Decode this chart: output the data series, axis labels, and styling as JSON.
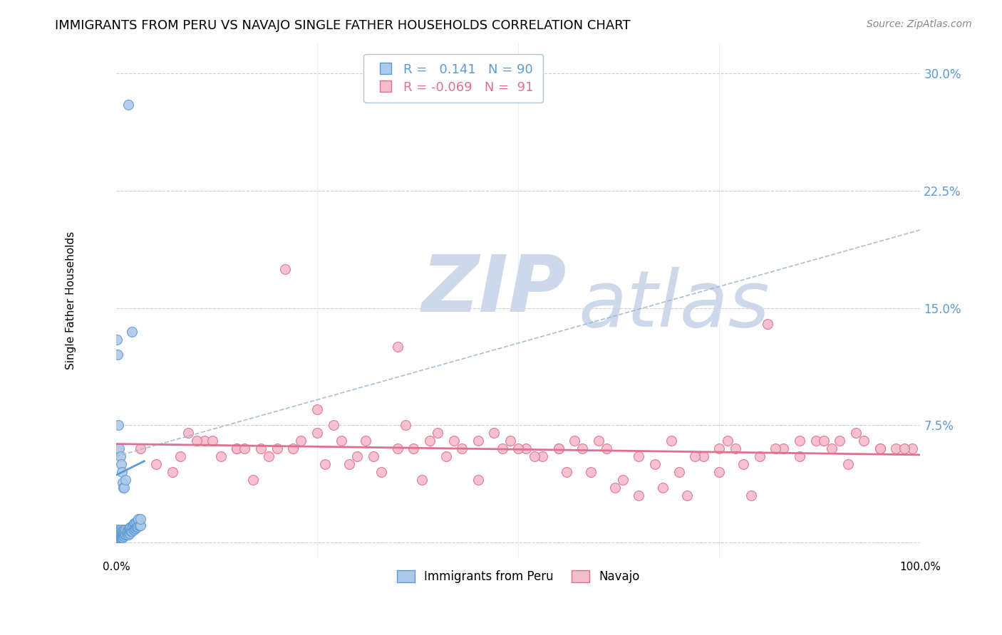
{
  "title": "IMMIGRANTS FROM PERU VS NAVAJO SINGLE FATHER HOUSEHOLDS CORRELATION CHART",
  "source": "Source: ZipAtlas.com",
  "ylabel": "Single Father Households",
  "xlim": [
    0.0,
    1.0
  ],
  "ylim": [
    -0.01,
    0.32
  ],
  "xticks": [
    0.0,
    0.25,
    0.5,
    0.75,
    1.0
  ],
  "xtick_labels": [
    "0.0%",
    "",
    "",
    "",
    "100.0%"
  ],
  "ytick_positions": [
    0.0,
    0.075,
    0.15,
    0.225,
    0.3
  ],
  "ytick_labels": [
    "",
    "7.5%",
    "15.0%",
    "22.5%",
    "30.0%"
  ],
  "ytick_color": "#5b9bd5",
  "grid_color": "#d0d0d0",
  "background_color": "#ffffff",
  "R_peru": 0.141,
  "N_peru": 90,
  "R_navajo": -0.069,
  "N_navajo": 91,
  "peru_color": "#adc8e8",
  "peru_edge_color": "#5b9bd5",
  "navajo_color": "#f5bccb",
  "navajo_edge_color": "#e07090",
  "trendline_peru_color": "#5b9bd5",
  "trendline_navajo_color": "#e07090",
  "trendline_dashed_color": "#a0b8d0",
  "watermark_zip": "ZIP",
  "watermark_atlas": "atlas",
  "watermark_color": "#cdd9ea",
  "peru_x": [
    0.0005,
    0.001,
    0.001,
    0.001,
    0.001,
    0.001,
    0.001,
    0.002,
    0.002,
    0.002,
    0.002,
    0.002,
    0.002,
    0.003,
    0.003,
    0.003,
    0.003,
    0.003,
    0.004,
    0.004,
    0.004,
    0.004,
    0.004,
    0.005,
    0.005,
    0.005,
    0.005,
    0.006,
    0.006,
    0.006,
    0.006,
    0.007,
    0.007,
    0.007,
    0.008,
    0.008,
    0.008,
    0.009,
    0.009,
    0.01,
    0.01,
    0.01,
    0.011,
    0.011,
    0.012,
    0.012,
    0.013,
    0.013,
    0.014,
    0.015,
    0.015,
    0.016,
    0.016,
    0.017,
    0.017,
    0.018,
    0.018,
    0.019,
    0.02,
    0.02,
    0.021,
    0.021,
    0.022,
    0.022,
    0.023,
    0.023,
    0.024,
    0.025,
    0.025,
    0.026,
    0.027,
    0.027,
    0.028,
    0.028,
    0.029,
    0.03,
    0.03,
    0.001,
    0.002,
    0.003,
    0.004,
    0.005,
    0.006,
    0.007,
    0.008,
    0.009,
    0.01,
    0.012,
    0.015,
    0.02
  ],
  "peru_y": [
    0.005,
    0.003,
    0.004,
    0.005,
    0.006,
    0.007,
    0.008,
    0.003,
    0.004,
    0.005,
    0.006,
    0.007,
    0.008,
    0.003,
    0.004,
    0.005,
    0.006,
    0.007,
    0.003,
    0.004,
    0.005,
    0.006,
    0.007,
    0.003,
    0.004,
    0.005,
    0.007,
    0.003,
    0.004,
    0.006,
    0.008,
    0.003,
    0.005,
    0.007,
    0.003,
    0.005,
    0.007,
    0.004,
    0.006,
    0.004,
    0.006,
    0.008,
    0.005,
    0.007,
    0.005,
    0.008,
    0.005,
    0.007,
    0.006,
    0.005,
    0.008,
    0.006,
    0.009,
    0.006,
    0.009,
    0.007,
    0.01,
    0.007,
    0.007,
    0.01,
    0.008,
    0.011,
    0.008,
    0.012,
    0.009,
    0.012,
    0.009,
    0.01,
    0.013,
    0.01,
    0.01,
    0.014,
    0.011,
    0.015,
    0.011,
    0.011,
    0.015,
    0.13,
    0.12,
    0.075,
    0.06,
    0.055,
    0.05,
    0.045,
    0.038,
    0.035,
    0.035,
    0.04,
    0.28,
    0.135
  ],
  "navajo_x": [
    0.03,
    0.05,
    0.07,
    0.09,
    0.11,
    0.13,
    0.15,
    0.17,
    0.19,
    0.21,
    0.23,
    0.25,
    0.27,
    0.29,
    0.31,
    0.33,
    0.35,
    0.37,
    0.39,
    0.41,
    0.43,
    0.45,
    0.47,
    0.49,
    0.51,
    0.53,
    0.55,
    0.57,
    0.59,
    0.61,
    0.63,
    0.65,
    0.67,
    0.69,
    0.71,
    0.73,
    0.75,
    0.77,
    0.79,
    0.81,
    0.83,
    0.85,
    0.87,
    0.89,
    0.91,
    0.93,
    0.95,
    0.97,
    0.99,
    0.1,
    0.2,
    0.3,
    0.4,
    0.5,
    0.6,
    0.7,
    0.8,
    0.9,
    0.15,
    0.25,
    0.35,
    0.45,
    0.55,
    0.65,
    0.75,
    0.85,
    0.95,
    0.08,
    0.18,
    0.28,
    0.38,
    0.48,
    0.58,
    0.68,
    0.78,
    0.88,
    0.98,
    0.12,
    0.22,
    0.32,
    0.42,
    0.52,
    0.62,
    0.72,
    0.82,
    0.92,
    0.16,
    0.26,
    0.36,
    0.56,
    0.76
  ],
  "navajo_y": [
    0.06,
    0.05,
    0.045,
    0.07,
    0.065,
    0.055,
    0.06,
    0.04,
    0.055,
    0.175,
    0.065,
    0.085,
    0.075,
    0.05,
    0.065,
    0.045,
    0.125,
    0.06,
    0.065,
    0.055,
    0.06,
    0.04,
    0.07,
    0.065,
    0.06,
    0.055,
    0.06,
    0.065,
    0.045,
    0.06,
    0.04,
    0.055,
    0.05,
    0.065,
    0.03,
    0.055,
    0.045,
    0.06,
    0.03,
    0.14,
    0.06,
    0.055,
    0.065,
    0.06,
    0.05,
    0.065,
    0.06,
    0.06,
    0.06,
    0.065,
    0.06,
    0.055,
    0.07,
    0.06,
    0.065,
    0.045,
    0.055,
    0.065,
    0.06,
    0.07,
    0.06,
    0.065,
    0.06,
    0.03,
    0.06,
    0.065,
    0.06,
    0.055,
    0.06,
    0.065,
    0.04,
    0.06,
    0.06,
    0.035,
    0.05,
    0.065,
    0.06,
    0.065,
    0.06,
    0.055,
    0.065,
    0.055,
    0.035,
    0.055,
    0.06,
    0.07,
    0.06,
    0.05,
    0.075,
    0.045,
    0.065
  ],
  "trendline_peru_x0": 0.0,
  "trendline_peru_y0": 0.043,
  "trendline_peru_x1": 0.035,
  "trendline_peru_y1": 0.052,
  "trendline_navajo_x0": 0.0,
  "trendline_navajo_y0": 0.063,
  "trendline_navajo_x1": 1.0,
  "trendline_navajo_y1": 0.056,
  "trendline_dash_x0": 0.0,
  "trendline_dash_y0": 0.055,
  "trendline_dash_x1": 1.0,
  "trendline_dash_y1": 0.2
}
